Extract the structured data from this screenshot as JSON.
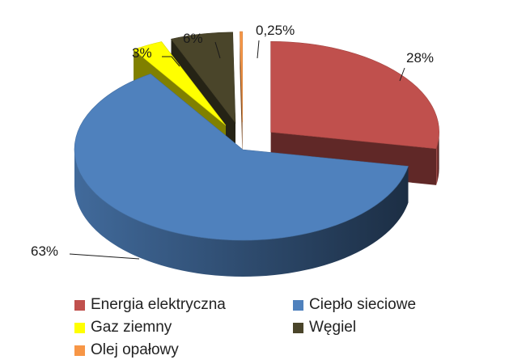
{
  "chart_data": {
    "type": "pie",
    "categories": [
      "Energia elektryczna",
      "Ciepło sieciowe",
      "Gaz ziemny",
      "Węgiel",
      "Olej opałowy"
    ],
    "values": [
      28,
      63,
      3,
      6,
      0.25
    ],
    "data_labels": [
      "28%",
      "63%",
      "3%",
      "6%",
      "0,25%"
    ],
    "colors": [
      "#c0504d",
      "#4f81bd",
      "#ffff00",
      "#4a452a",
      "#f79646"
    ],
    "exploded": true,
    "three_d": true,
    "legend_position": "bottom"
  }
}
